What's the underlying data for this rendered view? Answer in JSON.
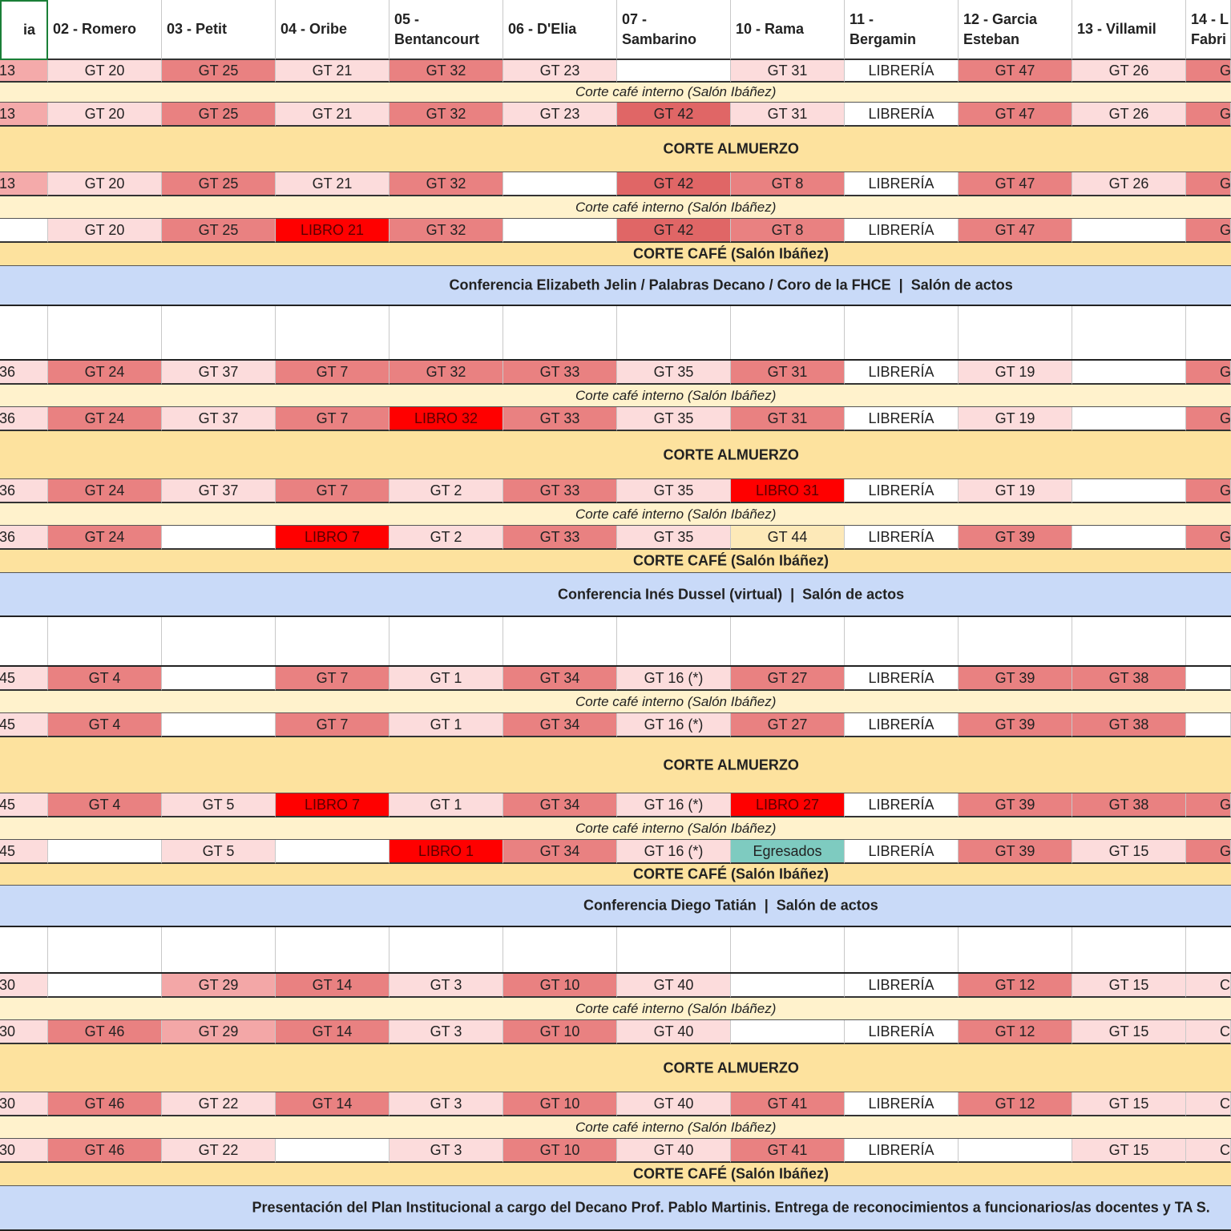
{
  "table": {
    "header": [
      "ia",
      "02 - Romero",
      "03 - Petit",
      "04 - Oribe",
      "05 -\nBentancourt",
      "06 - D'Elia",
      "07 -\nSambarino",
      "10 - Rama",
      "11 -\nBergamin",
      "12 - Garcia\nEsteban",
      "13 - Villamil",
      "14 - L\nFabri"
    ],
    "rows": [
      {
        "kind": "session",
        "cells": [
          "13",
          "GT 20",
          "GT 25",
          "GT 21",
          "GT 32",
          "GT 23",
          null,
          "GT 31",
          "LIBRERÍA",
          "GT 47",
          "GT 26",
          "G"
        ],
        "colors": [
          "#f4aaaa",
          "#fcdcdc",
          "#e98181",
          "#fcdcdc",
          "#e98181",
          "#fcdcdc",
          "#ffffff",
          "#fcdcdc",
          "#ffffff",
          "#e98181",
          "#fcdcdc",
          "#e98181"
        ]
      },
      {
        "kind": "break",
        "text": "Corte café interno (Salón Ibáñez)",
        "color": "#fff2cc"
      },
      {
        "kind": "session",
        "cells": [
          "13",
          "GT 20",
          "GT 25",
          "GT 21",
          "GT 32",
          "GT 23",
          "GT 42",
          "GT 31",
          "LIBRERÍA",
          "GT 47",
          "GT 26",
          "G"
        ],
        "colors": [
          "#f4aaaa",
          "#fcdcdc",
          "#e98181",
          "#fcdcdc",
          "#e98181",
          "#fcdcdc",
          "#e06666",
          "#fcdcdc",
          "#ffffff",
          "#e98181",
          "#fcdcdc",
          "#e98181"
        ]
      },
      {
        "kind": "lunch",
        "text": "CORTE ALMUERZO",
        "color": "#fde29e"
      },
      {
        "kind": "session",
        "cells": [
          "13",
          "GT 20",
          "GT 25",
          "GT 21",
          "GT 32",
          null,
          "GT 42",
          "GT 8",
          "LIBRERÍA",
          "GT 47",
          "GT 26",
          "G"
        ],
        "colors": [
          "#f4aaaa",
          "#fcdcdc",
          "#e98181",
          "#fcdcdc",
          "#e98181",
          "#ffffff",
          "#e06666",
          "#e98181",
          "#ffffff",
          "#e98181",
          "#fcdcdc",
          "#e98181"
        ]
      },
      {
        "kind": "break",
        "text": "Corte café interno (Salón Ibáñez)",
        "color": "#fff2cc"
      },
      {
        "kind": "session",
        "cells": [
          null,
          "GT 20",
          "GT 25",
          "LIBRO 21",
          "GT 32",
          null,
          "GT 42",
          "GT 8",
          "LIBRERÍA",
          "GT 47",
          null,
          "G"
        ],
        "colors": [
          "#ffffff",
          "#fcdcdc",
          "#e98181",
          "#ff0000",
          "#e98181",
          "#ffffff",
          "#e06666",
          "#e98181",
          "#ffffff",
          "#e98181",
          "#ffffff",
          "#e98181"
        ]
      },
      {
        "kind": "coffee",
        "text": "CORTE CAFÉ (Salón Ibáñez)",
        "color": "#fde29e"
      },
      {
        "kind": "talk",
        "text": "Conferencia Elizabeth Jelin / Palabras Decano / Coro de la FHCE  |  Salón de actos",
        "color": "#c9daf8"
      },
      {
        "kind": "blank"
      },
      {
        "kind": "session",
        "cells": [
          "36",
          "GT 24",
          "GT 37",
          "GT 7",
          "GT 32",
          "GT 33",
          "GT 35",
          "GT 31",
          "LIBRERÍA",
          "GT 19",
          null,
          "G"
        ],
        "colors": [
          "#fcdcdc",
          "#e98181",
          "#fcdcdc",
          "#e98181",
          "#e98181",
          "#e98181",
          "#fcdcdc",
          "#e98181",
          "#ffffff",
          "#fcdcdc",
          "#ffffff",
          "#e98181"
        ]
      },
      {
        "kind": "break",
        "text": "Corte café interno (Salón Ibáñez)",
        "color": "#fff2cc"
      },
      {
        "kind": "session",
        "cells": [
          "36",
          "GT 24",
          "GT 37",
          "GT 7",
          "LIBRO 32",
          "GT 33",
          "GT 35",
          "GT 31",
          "LIBRERÍA",
          "GT 19",
          null,
          "G"
        ],
        "colors": [
          "#fcdcdc",
          "#e98181",
          "#fcdcdc",
          "#e98181",
          "#ff0000",
          "#e98181",
          "#fcdcdc",
          "#e98181",
          "#ffffff",
          "#fcdcdc",
          "#ffffff",
          "#e98181"
        ]
      },
      {
        "kind": "lunch",
        "text": "CORTE ALMUERZO",
        "color": "#fde29e"
      },
      {
        "kind": "session",
        "cells": [
          "36",
          "GT 24",
          "GT 37",
          "GT 7",
          "GT 2",
          "GT 33",
          "GT 35",
          "LIBRO 31",
          "LIBRERÍA",
          "GT 19",
          null,
          "G"
        ],
        "colors": [
          "#fcdcdc",
          "#e98181",
          "#fcdcdc",
          "#e98181",
          "#fcdcdc",
          "#e98181",
          "#fcdcdc",
          "#ff0000",
          "#ffffff",
          "#fcdcdc",
          "#ffffff",
          "#e98181"
        ]
      },
      {
        "kind": "break",
        "text": "Corte café interno (Salón Ibáñez)",
        "color": "#fff2cc"
      },
      {
        "kind": "session",
        "cells": [
          "36",
          "GT 24",
          null,
          "LIBRO 7",
          "GT 2",
          "GT 33",
          "GT 35",
          "GT 44",
          "LIBRERÍA",
          "GT 39",
          null,
          "G"
        ],
        "colors": [
          "#fcdcdc",
          "#e98181",
          "#ffffff",
          "#ff0000",
          "#fcdcdc",
          "#e98181",
          "#fcdcdc",
          "#fde9b8",
          "#ffffff",
          "#e98181",
          "#ffffff",
          "#e98181"
        ]
      },
      {
        "kind": "coffee",
        "text": "CORTE CAFÉ (Salón Ibáñez)",
        "color": "#fde29e"
      },
      {
        "kind": "talk",
        "text": "Conferencia Inés Dussel (virtual)  |  Salón de actos",
        "color": "#c9daf8"
      },
      {
        "kind": "blank"
      },
      {
        "kind": "session",
        "cells": [
          "45",
          "GT 4",
          null,
          "GT 7",
          "GT 1",
          "GT 34",
          "GT 16 (*)",
          "GT 27",
          "LIBRERÍA",
          "GT 39",
          "GT 38",
          null
        ],
        "colors": [
          "#fcdcdc",
          "#e98181",
          "#ffffff",
          "#e98181",
          "#fcdcdc",
          "#e98181",
          "#fcdcdc",
          "#e98181",
          "#ffffff",
          "#e98181",
          "#e98181",
          "#ffffff"
        ]
      },
      {
        "kind": "break",
        "text": "Corte café interno (Salón Ibáñez)",
        "color": "#fff2cc"
      },
      {
        "kind": "session",
        "cells": [
          "45",
          "GT 4",
          null,
          "GT 7",
          "GT 1",
          "GT 34",
          "GT 16 (*)",
          "GT 27",
          "LIBRERÍA",
          "GT 39",
          "GT 38",
          null
        ],
        "colors": [
          "#fcdcdc",
          "#e98181",
          "#ffffff",
          "#e98181",
          "#fcdcdc",
          "#e98181",
          "#fcdcdc",
          "#e98181",
          "#ffffff",
          "#e98181",
          "#e98181",
          "#ffffff"
        ]
      },
      {
        "kind": "lunch",
        "text": "CORTE ALMUERZO",
        "color": "#fde29e"
      },
      {
        "kind": "session",
        "cells": [
          "45",
          "GT 4",
          "GT 5",
          "LIBRO 7",
          "GT 1",
          "GT 34",
          "GT 16 (*)",
          "LIBRO 27",
          "LIBRERÍA",
          "GT 39",
          "GT 38",
          "G"
        ],
        "colors": [
          "#fcdcdc",
          "#e98181",
          "#fcdcdc",
          "#ff0000",
          "#fcdcdc",
          "#e98181",
          "#fcdcdc",
          "#ff0000",
          "#ffffff",
          "#e98181",
          "#e98181",
          "#e98181"
        ]
      },
      {
        "kind": "break",
        "text": "Corte café interno (Salón Ibáñez)",
        "color": "#fff2cc"
      },
      {
        "kind": "session",
        "cells": [
          "45",
          null,
          "GT 5",
          null,
          "LIBRO 1",
          "GT 34",
          "GT 16 (*)",
          "Egresados",
          "LIBRERÍA",
          "GT 39",
          "GT 15",
          "G"
        ],
        "colors": [
          "#fcdcdc",
          "#ffffff",
          "#fcdcdc",
          "#ffffff",
          "#ff0000",
          "#e98181",
          "#fcdcdc",
          "#7ecbc0",
          "#ffffff",
          "#e98181",
          "#fcdcdc",
          "#e98181"
        ]
      },
      {
        "kind": "coffee",
        "text": "CORTE CAFÉ (Salón Ibáñez)",
        "color": "#fde29e"
      },
      {
        "kind": "talk",
        "text": "Conferencia Diego Tatián  |  Salón de actos",
        "color": "#c9daf8"
      },
      {
        "kind": "blank"
      },
      {
        "kind": "session",
        "cells": [
          "30",
          null,
          "GT 29",
          "GT 14",
          "GT 3",
          "GT 10",
          "GT 40",
          null,
          "LIBRERÍA",
          "GT 12",
          "GT 15",
          "C"
        ],
        "colors": [
          "#fcdcdc",
          "#ffffff",
          "#f3a7a7",
          "#e98181",
          "#fcdcdc",
          "#e98181",
          "#fcdcdc",
          "#ffffff",
          "#ffffff",
          "#e98181",
          "#fcdcdc",
          "#fcdcdc"
        ]
      },
      {
        "kind": "break",
        "text": "Corte café interno (Salón Ibáñez)",
        "color": "#fff2cc"
      },
      {
        "kind": "session",
        "cells": [
          "30",
          "GT 46",
          "GT 29",
          "GT 14",
          "GT 3",
          "GT 10",
          "GT 40",
          null,
          "LIBRERÍA",
          "GT 12",
          "GT 15",
          "C"
        ],
        "colors": [
          "#fcdcdc",
          "#e98181",
          "#f3a7a7",
          "#e98181",
          "#fcdcdc",
          "#e98181",
          "#fcdcdc",
          "#ffffff",
          "#ffffff",
          "#e98181",
          "#fcdcdc",
          "#fcdcdc"
        ]
      },
      {
        "kind": "lunch",
        "text": "CORTE ALMUERZO",
        "color": "#fde29e"
      },
      {
        "kind": "session",
        "cells": [
          "30",
          "GT 46",
          "GT 22",
          "GT 14",
          "GT 3",
          "GT 10",
          "GT 40",
          "GT 41",
          "LIBRERÍA",
          "GT 12",
          "GT 15",
          "C"
        ],
        "colors": [
          "#fcdcdc",
          "#e98181",
          "#fcdcdc",
          "#e98181",
          "#fcdcdc",
          "#e98181",
          "#fcdcdc",
          "#e98181",
          "#ffffff",
          "#e98181",
          "#fcdcdc",
          "#fcdcdc"
        ]
      },
      {
        "kind": "break",
        "text": "Corte café interno (Salón Ibáñez)",
        "color": "#fff2cc"
      },
      {
        "kind": "session",
        "cells": [
          "30",
          "GT 46",
          "GT 22",
          null,
          "GT 3",
          "GT 10",
          "GT 40",
          "GT 41",
          "LIBRERÍA",
          null,
          "GT 15",
          "C"
        ],
        "colors": [
          "#fcdcdc",
          "#e98181",
          "#fcdcdc",
          "#ffffff",
          "#fcdcdc",
          "#e98181",
          "#fcdcdc",
          "#e98181",
          "#ffffff",
          "#ffffff",
          "#fcdcdc",
          "#fcdcdc"
        ]
      },
      {
        "kind": "coffee",
        "text": "CORTE CAFÉ (Salón Ibáñez)",
        "color": "#fde29e"
      },
      {
        "kind": "talk",
        "text": "Presentación del Plan Institucional a cargo del Decano Prof. Pablo Martinis. Entrega de reconocimientos a funcionarios/as docentes y TA S.",
        "color": "#c9daf8"
      }
    ]
  }
}
